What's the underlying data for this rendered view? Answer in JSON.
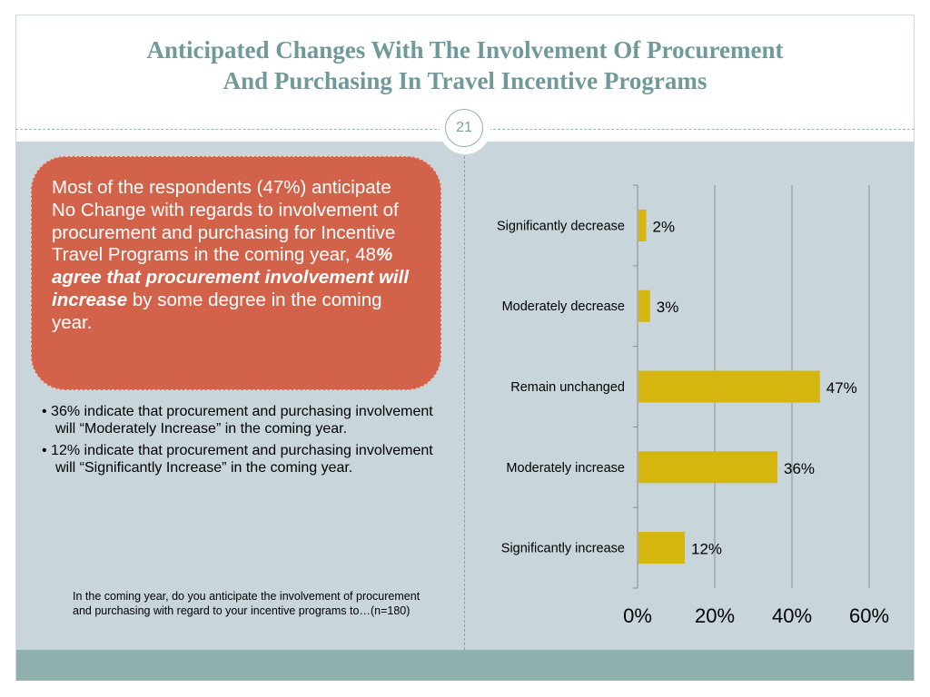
{
  "title_lines": [
    "Anticipated Changes With The Involvement Of Procurement",
    "And Purchasing In Travel Incentive Programs"
  ],
  "page_number": "21",
  "callout": {
    "part1": "Most of the respondents (47%) anticipate No Change with regards to involvement of procurement and purchasing for Incentive Travel Programs in the coming year, 48",
    "part2": "% agree that procurement involvement will increase",
    "part3": " by some degree in the coming year."
  },
  "bullets": [
    "• 36% indicate that procurement and purchasing involvement will “Moderately Increase” in the coming year.",
    "• 12% indicate that procurement and purchasing involvement will “Significantly Increase” in the coming year."
  ],
  "question": "In the coming year, do you anticipate the involvement of procurement and purchasing with regard to your incentive programs to…(n=180)",
  "colors": {
    "title": "#6f9a99",
    "callout_bg": "#d2634a",
    "bar": "#d4b60e",
    "content_bg": "#c8d5db",
    "footer": "#8fb0ad"
  },
  "chart_data": {
    "type": "bar",
    "orientation": "horizontal",
    "categories": [
      "Significantly decrease",
      "Moderately decrease",
      "Remain unchanged",
      "Moderately increase",
      "Significantly increase"
    ],
    "values": [
      2,
      3,
      47,
      36,
      12
    ],
    "data_labels": [
      "2%",
      "3%",
      "47%",
      "36%",
      "12%"
    ],
    "x_ticks": [
      "0%",
      "20%",
      "40%",
      "60%"
    ],
    "xlim": [
      0,
      60
    ],
    "grid": true
  }
}
